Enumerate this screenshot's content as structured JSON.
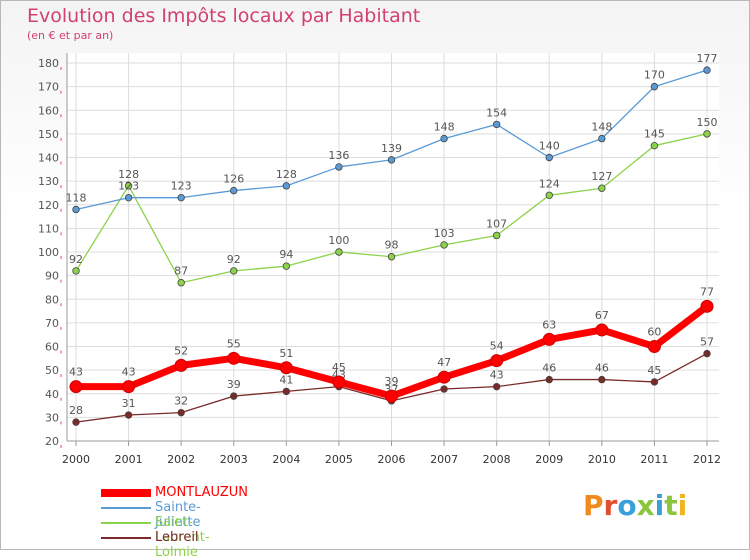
{
  "title": "Evolution des Impôts locaux par Habitant",
  "subtitle": "(en € et par an)",
  "logo_text": "Proxiti",
  "colors": {
    "title": "#d2416e",
    "grid": "#dddddd",
    "axis": "#999999",
    "label": "#555555"
  },
  "chart_data": {
    "type": "line",
    "x": [
      "2000",
      "2001",
      "2002",
      "2003",
      "2004",
      "2005",
      "2006",
      "2007",
      "2008",
      "2009",
      "2010",
      "2011",
      "2012"
    ],
    "ylim": [
      20,
      180
    ],
    "yticks": [
      20,
      30,
      40,
      50,
      60,
      70,
      80,
      90,
      100,
      110,
      120,
      130,
      140,
      150,
      160,
      170,
      180
    ],
    "grid": true,
    "legend_position": "bottom-left",
    "series": [
      {
        "name": "MONTLAUZUN",
        "color": "#ff0000",
        "values": [
          43,
          43,
          52,
          55,
          51,
          45,
          39,
          47,
          54,
          63,
          67,
          60,
          77
        ]
      },
      {
        "name": "Sainte-Juliette",
        "color": "#5b9bd5",
        "values": [
          118,
          123,
          123,
          126,
          128,
          136,
          139,
          148,
          154,
          140,
          148,
          170,
          177
        ]
      },
      {
        "name": "Saint-Laurent-Lolmie",
        "color": "#8cd24a",
        "values": [
          92,
          128,
          87,
          92,
          94,
          100,
          98,
          103,
          107,
          124,
          127,
          145,
          150
        ]
      },
      {
        "name": "Lebreil",
        "color": "#7b2a2a",
        "values": [
          28,
          31,
          32,
          39,
          41,
          43,
          37,
          42,
          43,
          46,
          46,
          45,
          57
        ]
      }
    ]
  }
}
